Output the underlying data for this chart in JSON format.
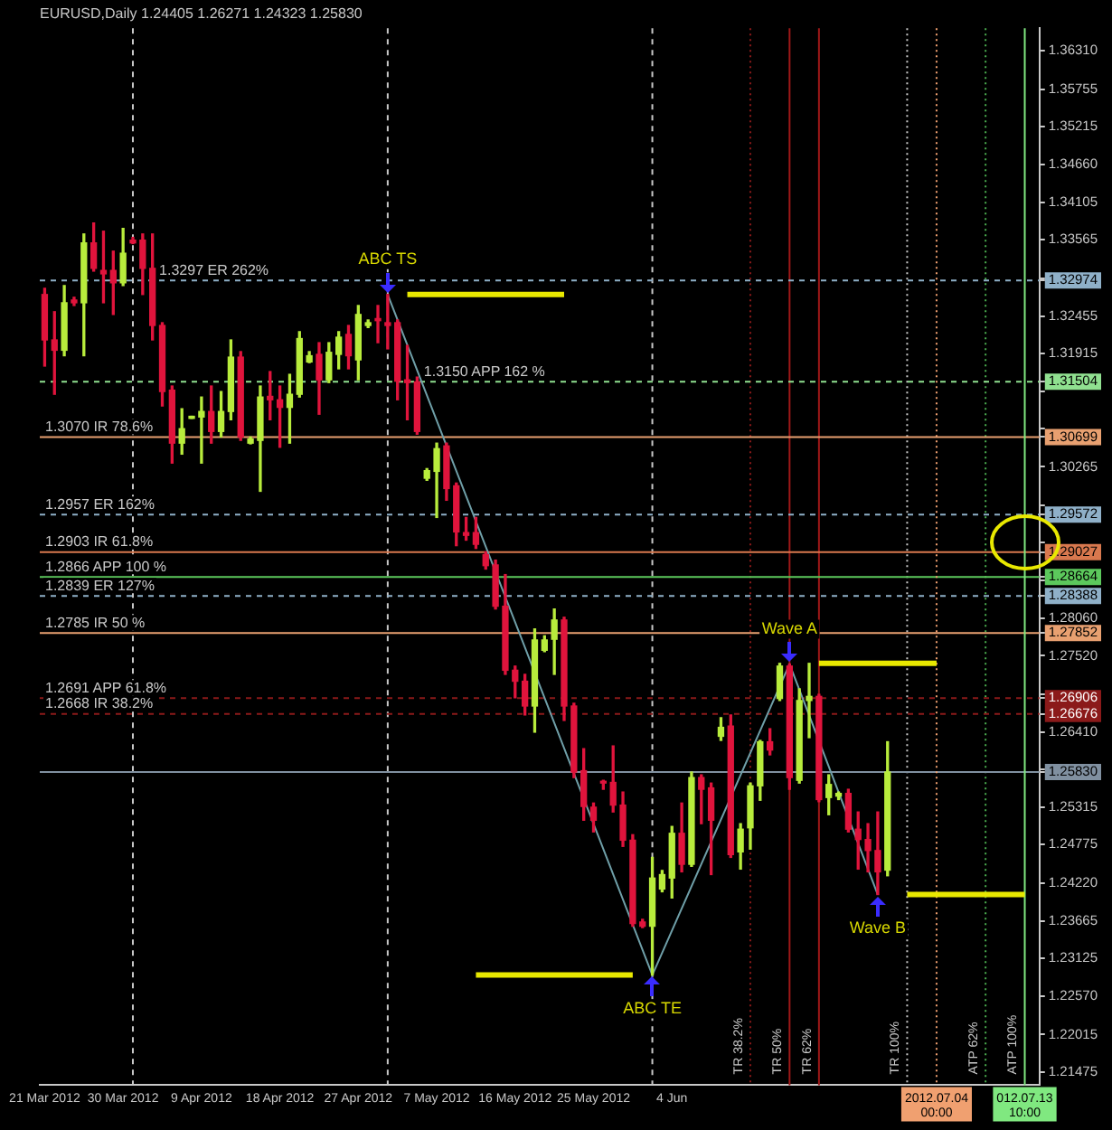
{
  "chart_data": {
    "type": "candlestick",
    "title": "EURUSD,Daily 1.24405 1.26271 1.24323 1.25830",
    "categories": [
      "21 Mar 2012",
      null,
      null,
      null,
      null,
      null,
      null,
      null,
      "30 Mar 2012",
      null,
      null,
      null,
      null,
      null,
      null,
      null,
      "9 Apr 2012",
      null,
      null,
      null,
      null,
      null,
      null,
      null,
      "18 Apr 2012",
      null,
      null,
      null,
      null,
      null,
      null,
      null,
      "27 Apr 2012",
      null,
      null,
      null,
      null,
      null,
      null,
      null,
      "7 May 2012",
      null,
      null,
      null,
      null,
      null,
      null,
      null,
      "16 May 2012",
      null,
      null,
      null,
      null,
      null,
      null,
      null,
      "25 May 2012",
      null,
      null,
      null,
      null,
      null,
      null,
      null,
      "4 Jun",
      null,
      null,
      null,
      null,
      null,
      null,
      null,
      null,
      null,
      null,
      null,
      null,
      null,
      null,
      null,
      null,
      null,
      null,
      null,
      null,
      null,
      null,
      null,
      null,
      null,
      null,
      "2012.07.04 00:00",
      null,
      null,
      null,
      null,
      null,
      null,
      null,
      null,
      "012.07.13 10:00",
      null
    ],
    "ohlc": [
      [
        1.3277,
        1.3286,
        1.3173,
        1.3211
      ],
      [
        1.3211,
        1.3252,
        1.3132,
        1.3196
      ],
      [
        1.3196,
        1.329,
        1.3188,
        1.3265
      ],
      [
        1.3269,
        1.3273,
        1.3261,
        1.3265
      ],
      [
        1.3265,
        1.3365,
        1.3188,
        1.3352
      ],
      [
        1.3352,
        1.3381,
        1.3311,
        1.3315
      ],
      [
        1.3312,
        1.3369,
        1.3265,
        1.3307
      ],
      [
        1.3312,
        1.334,
        1.3248,
        1.3294
      ],
      [
        1.3294,
        1.3373,
        1.329,
        1.3337
      ],
      [
        1.3356,
        1.336,
        1.3351,
        1.3352
      ],
      [
        1.3356,
        1.3365,
        1.3277,
        1.3315
      ],
      [
        1.3315,
        1.3365,
        1.3211,
        1.3232
      ],
      [
        1.3232,
        1.3236,
        1.3115,
        1.3136
      ],
      [
        1.3138,
        1.3144,
        1.3032,
        1.3061
      ],
      [
        1.3061,
        1.3111,
        1.3045,
        1.3082
      ],
      [
        1.3097,
        1.31,
        1.3097,
        1.31
      ],
      [
        1.3099,
        1.3128,
        1.3032,
        1.3107
      ],
      [
        1.3107,
        1.3144,
        1.3061,
        1.3078
      ],
      [
        1.3078,
        1.3136,
        1.307,
        1.3107
      ],
      [
        1.3107,
        1.3211,
        1.3095,
        1.3186
      ],
      [
        1.3186,
        1.3194,
        1.3065,
        1.307
      ],
      [
        1.3061,
        1.307,
        1.306,
        1.3067
      ],
      [
        1.3065,
        1.3144,
        1.2991,
        1.3128
      ],
      [
        1.3129,
        1.3165,
        1.3095,
        1.3124
      ],
      [
        1.3124,
        1.3144,
        1.3055,
        1.3113
      ],
      [
        1.3113,
        1.3161,
        1.3061,
        1.3132
      ],
      [
        1.3132,
        1.3223,
        1.3128,
        1.3213
      ],
      [
        1.3179,
        1.3194,
        1.3178,
        1.3188
      ],
      [
        1.319,
        1.3207,
        1.3103,
        1.3153
      ],
      [
        1.3153,
        1.3207,
        1.3149,
        1.3193
      ],
      [
        1.319,
        1.3223,
        1.3169,
        1.3215
      ],
      [
        1.3219,
        1.3232,
        1.3169,
        1.3188
      ],
      [
        1.3182,
        1.3261,
        1.3153,
        1.3248
      ],
      [
        1.3232,
        1.324,
        1.3229,
        1.3236
      ],
      [
        1.3242,
        1.3261,
        1.3207,
        1.3239
      ],
      [
        1.3236,
        1.3277,
        1.3198,
        1.3232
      ],
      [
        1.3236,
        1.324,
        1.3124,
        1.3151
      ],
      [
        1.3153,
        1.3203,
        1.3095,
        1.3149
      ],
      [
        1.315,
        1.3157,
        1.3074,
        1.3078
      ],
      [
        1.301,
        1.3024,
        1.3007,
        1.3021
      ],
      [
        1.302,
        1.3061,
        1.2953,
        1.3053
      ],
      [
        1.3057,
        1.3061,
        1.2978,
        1.2995
      ],
      [
        1.2999,
        1.3003,
        1.2912,
        1.2932
      ],
      [
        1.2931,
        1.2953,
        1.292,
        1.2927
      ],
      [
        1.2931,
        1.2953,
        1.2908,
        1.2914
      ],
      [
        1.2899,
        1.2903,
        1.2878,
        1.2883
      ],
      [
        1.2884,
        1.2891,
        1.282,
        1.2824
      ],
      [
        1.2824,
        1.287,
        1.2725,
        1.2731
      ],
      [
        1.2731,
        1.2737,
        1.2691,
        1.2715
      ],
      [
        1.2715,
        1.2725,
        1.2666,
        1.2679
      ],
      [
        1.2679,
        1.2791,
        1.2641,
        1.2775
      ],
      [
        1.276,
        1.2781,
        1.2758,
        1.2775
      ],
      [
        1.2776,
        1.282,
        1.2725,
        1.2804
      ],
      [
        1.2804,
        1.2808,
        1.2658,
        1.2679
      ],
      [
        1.2679,
        1.2683,
        1.2575,
        1.2583
      ],
      [
        1.2585,
        1.2617,
        1.2513,
        1.2533
      ],
      [
        1.2532,
        1.2538,
        1.2496,
        1.2513
      ],
      [
        1.2568,
        1.2571,
        1.2558,
        1.2567
      ],
      [
        1.2568,
        1.2621,
        1.2525,
        1.2535
      ],
      [
        1.2535,
        1.2554,
        1.2475,
        1.2484
      ],
      [
        1.2484,
        1.2492,
        1.2359,
        1.2363
      ],
      [
        1.2365,
        1.2369,
        1.2357,
        1.2359
      ],
      [
        1.2359,
        1.2459,
        1.2288,
        1.2429
      ],
      [
        1.2413,
        1.244,
        1.2409,
        1.2434
      ],
      [
        1.2429,
        1.2504,
        1.24,
        1.2494
      ],
      [
        1.2494,
        1.2538,
        1.2438,
        1.2449
      ],
      [
        1.2449,
        1.2583,
        1.2446,
        1.2575
      ],
      [
        1.2575,
        1.2579,
        1.2508,
        1.2558
      ],
      [
        1.256,
        1.2567,
        1.2434,
        1.2513
      ],
      [
        1.2635,
        1.2662,
        1.2629,
        1.2648
      ],
      [
        1.265,
        1.2666,
        1.2459,
        1.2463
      ],
      [
        1.2467,
        1.2508,
        1.2442,
        1.25
      ],
      [
        1.2502,
        1.2567,
        1.2471,
        1.2563
      ],
      [
        1.2563,
        1.2629,
        1.2542,
        1.2627
      ],
      [
        1.2627,
        1.2646,
        1.2608,
        1.2615
      ],
      [
        1.269,
        1.2741,
        1.2687,
        1.2737
      ],
      [
        1.2737,
        1.274,
        1.2558,
        1.2575
      ],
      [
        1.2571,
        1.2704,
        1.2567,
        1.2687
      ],
      [
        1.2687,
        1.2741,
        1.2633,
        1.2693
      ],
      [
        1.2693,
        1.2696,
        1.254,
        1.2543
      ],
      [
        1.2546,
        1.2579,
        1.2521,
        1.2565
      ],
      [
        1.2548,
        1.2554,
        1.2543,
        1.2552
      ],
      [
        1.2552,
        1.2558,
        1.2496,
        1.25
      ],
      [
        1.25,
        1.2525,
        1.2442,
        1.2485
      ],
      [
        1.2485,
        1.2508,
        1.2438,
        1.2469
      ],
      [
        1.2469,
        1.2525,
        1.2405,
        1.2438
      ],
      [
        1.24405,
        1.26271,
        1.24323,
        1.2583
      ],
      null,
      null,
      null,
      null,
      null,
      null,
      null,
      null,
      null,
      null,
      null,
      null,
      null,
      null,
      null
    ],
    "series": [
      {
        "type": "line",
        "color": "#6f9fa8",
        "values": [
          null,
          null,
          null,
          null,
          null,
          null,
          null,
          null,
          null,
          null,
          null,
          null,
          null,
          null,
          null,
          null,
          null,
          null,
          null,
          null,
          null,
          null,
          null,
          null,
          null,
          null,
          null,
          null,
          null,
          null,
          null,
          null,
          null,
          null,
          null,
          1.3277,
          null,
          null,
          null,
          null,
          null,
          null,
          null,
          null,
          null,
          null,
          null,
          null,
          null,
          null,
          null,
          null,
          null,
          null,
          null,
          null,
          null,
          null,
          null,
          null,
          null,
          null,
          1.2288,
          null,
          null,
          null,
          null,
          null,
          null,
          null,
          null,
          null,
          null,
          null,
          null,
          null,
          1.274,
          null,
          null,
          null,
          null,
          null,
          null,
          null,
          null,
          1.2405,
          null,
          null,
          null,
          null,
          null,
          null,
          null,
          null,
          null,
          null,
          null,
          null,
          null,
          null,
          null,
          null
        ]
      },
      {
        "type": "line",
        "color": "#e8e800",
        "values": [
          null,
          null,
          null,
          null,
          null,
          null,
          null,
          null,
          null,
          null,
          null,
          null,
          null,
          null,
          null,
          null,
          null,
          null,
          null,
          null,
          null,
          null,
          null,
          null,
          null,
          null,
          null,
          null,
          null,
          null,
          null,
          null,
          null,
          null,
          null,
          null,
          null,
          1.3277,
          null,
          null,
          null,
          null,
          null,
          null,
          null,
          null,
          null,
          null,
          null,
          null,
          null,
          null,
          null,
          1.3277,
          null,
          null,
          null,
          null,
          null,
          null,
          null,
          null,
          null,
          null,
          null,
          null,
          null,
          null,
          null,
          null,
          null,
          null,
          null,
          null,
          null,
          null,
          null,
          null,
          null,
          null,
          null,
          null,
          null,
          null,
          null,
          null,
          null,
          null,
          null,
          null,
          null,
          null,
          null,
          null,
          null,
          null,
          null,
          null,
          null,
          null,
          null,
          null
        ]
      },
      {
        "type": "line",
        "color": "#e8e800",
        "values": [
          null,
          null,
          null,
          null,
          null,
          null,
          null,
          null,
          null,
          null,
          null,
          null,
          null,
          null,
          null,
          null,
          null,
          null,
          null,
          null,
          null,
          null,
          null,
          null,
          null,
          null,
          null,
          null,
          null,
          null,
          null,
          null,
          null,
          null,
          null,
          null,
          null,
          null,
          null,
          null,
          null,
          null,
          null,
          null,
          1.2288,
          null,
          null,
          null,
          null,
          null,
          null,
          null,
          null,
          null,
          null,
          null,
          null,
          null,
          null,
          null,
          1.2288,
          null,
          null,
          null,
          null,
          null,
          null,
          null,
          null,
          null,
          null,
          null,
          null,
          null,
          null,
          null,
          null,
          null,
          null,
          null,
          null,
          null,
          null,
          null,
          null,
          null,
          null,
          null,
          null,
          null,
          null,
          null,
          null,
          null,
          null,
          null,
          null,
          null,
          null,
          null,
          null,
          null
        ]
      },
      {
        "type": "line",
        "color": "#e8e800",
        "values": [
          null,
          null,
          null,
          null,
          null,
          null,
          null,
          null,
          null,
          null,
          null,
          null,
          null,
          null,
          null,
          null,
          null,
          null,
          null,
          null,
          null,
          null,
          null,
          null,
          null,
          null,
          null,
          null,
          null,
          null,
          null,
          null,
          null,
          null,
          null,
          null,
          null,
          null,
          null,
          null,
          null,
          null,
          null,
          null,
          null,
          null,
          null,
          null,
          null,
          null,
          null,
          null,
          null,
          null,
          null,
          null,
          null,
          null,
          null,
          null,
          null,
          null,
          null,
          null,
          null,
          null,
          null,
          null,
          null,
          null,
          null,
          null,
          null,
          null,
          null,
          null,
          null,
          null,
          null,
          1.2741,
          null,
          null,
          null,
          null,
          null,
          null,
          null,
          null,
          null,
          null,
          null,
          1.2741,
          null,
          null,
          null,
          null,
          null,
          null,
          null,
          null,
          null,
          null
        ]
      },
      {
        "type": "line",
        "color": "#e8e800",
        "values": [
          null,
          null,
          null,
          null,
          null,
          null,
          null,
          null,
          null,
          null,
          null,
          null,
          null,
          null,
          null,
          null,
          null,
          null,
          null,
          null,
          null,
          null,
          null,
          null,
          null,
          null,
          null,
          null,
          null,
          null,
          null,
          null,
          null,
          null,
          null,
          null,
          null,
          null,
          null,
          null,
          null,
          null,
          null,
          null,
          null,
          null,
          null,
          null,
          null,
          null,
          null,
          null,
          null,
          null,
          null,
          null,
          null,
          null,
          null,
          null,
          null,
          null,
          null,
          null,
          null,
          null,
          null,
          null,
          null,
          null,
          null,
          null,
          null,
          null,
          null,
          null,
          null,
          null,
          null,
          null,
          null,
          null,
          null,
          null,
          null,
          null,
          null,
          null,
          1.2405,
          null,
          null,
          null,
          null,
          null,
          null,
          null,
          null,
          null,
          null,
          null,
          1.2405,
          null
        ]
      }
    ],
    "ylim": [
      1.2128,
      1.3664
    ],
    "yticks": [
      {
        "value": 1.3631,
        "label": "1.36310"
      },
      {
        "value": 1.35755,
        "label": "1.35755"
      },
      {
        "value": 1.35215,
        "label": "1.35215"
      },
      {
        "value": 1.3466,
        "label": "1.34660"
      },
      {
        "value": 1.34105,
        "label": "1.34105"
      },
      {
        "value": 1.33565,
        "label": "1.33565"
      },
      {
        "value": 1.3301,
        "label": null
      },
      {
        "value": 1.32974,
        "label": "1.32974"
      },
      {
        "value": 1.32455,
        "label": "1.32455"
      },
      {
        "value": 1.31915,
        "label": "1.31915"
      },
      {
        "value": 1.31504,
        "label": "1.31504"
      },
      {
        "value": 1.3136,
        "label": null
      },
      {
        "value": 1.3082,
        "label": null
      },
      {
        "value": 1.30699,
        "label": "1.30699"
      },
      {
        "value": 1.30265,
        "label": "1.30265"
      },
      {
        "value": 1.2971,
        "label": null
      },
      {
        "value": 1.29572,
        "label": "1.29572"
      },
      {
        "value": 1.2917,
        "label": null
      },
      {
        "value": 1.29027,
        "label": "1.29027"
      },
      {
        "value": 1.28664,
        "label": "1.28664"
      },
      {
        "value": 1.28615,
        "label": null
      },
      {
        "value": 1.28388,
        "label": "1.28388"
      },
      {
        "value": 1.2806,
        "label": "1.28060"
      },
      {
        "value": 1.27852,
        "label": "1.27852"
      },
      {
        "value": 1.2752,
        "label": "1.27520"
      },
      {
        "value": 1.26965,
        "label": null
      },
      {
        "value": 1.26906,
        "label": "1.26906"
      },
      {
        "value": 1.26676,
        "label": "1.26676"
      },
      {
        "value": 1.2641,
        "label": "1.26410"
      },
      {
        "value": 1.2587,
        "label": null
      },
      {
        "value": 1.2583,
        "label": "1.25830"
      },
      {
        "value": 1.25315,
        "label": "1.25315"
      },
      {
        "value": 1.24775,
        "label": "1.24775"
      },
      {
        "value": 1.2422,
        "label": "1.24220"
      },
      {
        "value": 1.23665,
        "label": "1.23665"
      },
      {
        "value": 1.23125,
        "label": "1.23125"
      },
      {
        "value": 1.2257,
        "label": "1.22570"
      },
      {
        "value": 1.22015,
        "label": "1.22015"
      },
      {
        "value": 1.21475,
        "label": "1.21475"
      }
    ],
    "ref_lines": [
      {
        "axis": "y",
        "value": 1.32974,
        "label": "1.3297 ER 262%",
        "color": "#8fb0c8",
        "line_style": "dashed"
      },
      {
        "axis": "y",
        "value": 1.31504,
        "label": "1.3150 APP 162 %",
        "color": "#90e090",
        "line_style": "dashed"
      },
      {
        "axis": "y",
        "value": 1.30699,
        "label": "1.3070 IR 78.6%",
        "color": "#e8a070",
        "line_style": "solid"
      },
      {
        "axis": "y",
        "value": 1.29572,
        "label": "1.2957 ER 162%",
        "color": "#8fb0c8",
        "line_style": "dashed"
      },
      {
        "axis": "y",
        "value": 1.29027,
        "label": "1.2903 IR 61.8%",
        "color": "#d8784e",
        "line_style": "solid"
      },
      {
        "axis": "y",
        "value": 1.28664,
        "label": "1.2866 APP 100 %",
        "color": "#5cc85c",
        "line_style": "solid"
      },
      {
        "axis": "y",
        "value": 1.28388,
        "label": "1.2839 ER 127%",
        "color": "#8fb0c8",
        "line_style": "dashed"
      },
      {
        "axis": "y",
        "value": 1.27852,
        "label": "1.2785 IR 50 %",
        "color": "#e8a070",
        "line_style": "solid"
      },
      {
        "axis": "y",
        "value": 1.26906,
        "label": "1.2691 APP 61.8%",
        "color": "#8b1a1a",
        "line_style": "dashed"
      },
      {
        "axis": "y",
        "value": 1.26676,
        "label": "1.2668 IR 38.2%",
        "color": "#8b1a1a",
        "line_style": "dashed"
      },
      {
        "axis": "y",
        "value": 1.2583,
        "label": null,
        "color": "#8090a0",
        "line_style": "solid"
      },
      {
        "axis": "x",
        "value": "2012.07.04 00:00",
        "label": null,
        "color": "#f0a070",
        "line_style": "dotted"
      },
      {
        "axis": "x",
        "value": "012.07.13 10:00",
        "label": "ATP 100%",
        "color": "#80e880",
        "line_style": "solid"
      }
    ],
    "annotations": [
      {
        "text": "ABC TS",
        "y": 1.3277
      },
      {
        "text": "ABC TE",
        "y": 1.2288
      },
      {
        "text": "Wave A",
        "y": 1.274
      },
      {
        "text": "Wave B",
        "y": 1.2405
      },
      "TR 38.2%",
      "TR 50%",
      "TR 62%",
      "TR 100%",
      "ATP 62%"
    ]
  }
}
